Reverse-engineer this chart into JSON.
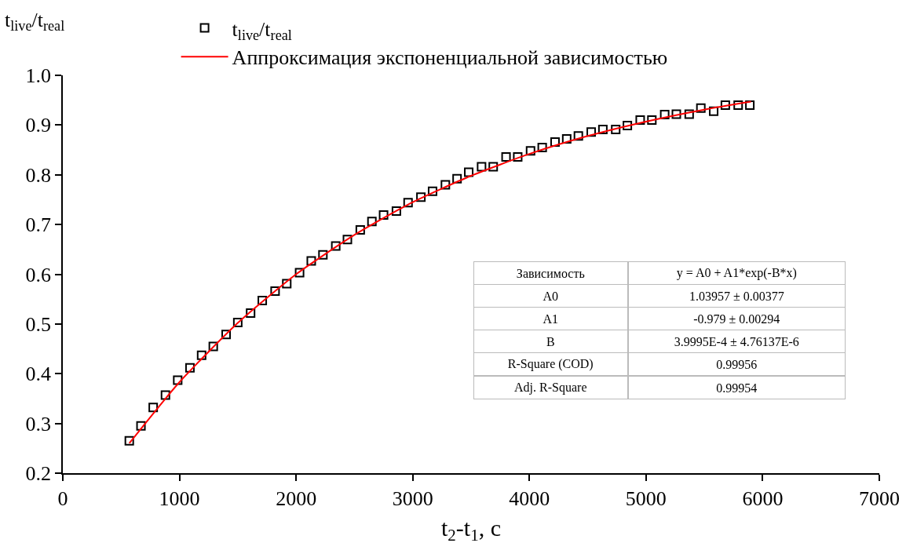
{
  "chart_data": {
    "type": "scatter",
    "xlabel": "t$_{2}$-t$_{1}$, c",
    "ylabel": "t$_{live}$/t$_{real}$",
    "xlim": [
      0,
      7000
    ],
    "xticks": [
      0,
      1000,
      2000,
      3000,
      4000,
      5000,
      6000,
      7000
    ],
    "ylim": [
      0.2,
      1.0
    ],
    "yticks": [
      {
        "value": 0.2,
        "label": "0.2"
      },
      {
        "value": 0.3,
        "label": "0.3"
      },
      {
        "value": 0.4,
        "label": "0.4"
      },
      {
        "value": 0.5,
        "label": "0.5"
      },
      {
        "value": 0.6,
        "label": "0.6"
      },
      {
        "value": 0.7,
        "label": "0.7"
      },
      {
        "value": 0.8,
        "label": "0.8"
      },
      {
        "value": 0.9,
        "label": "0.9"
      },
      {
        "value": 1.0,
        "label": "1.0"
      }
    ],
    "grid": false,
    "legend": "top",
    "marker": "square",
    "series": [
      {
        "name": "t$_{live}$/t$_{real}$",
        "type": "scatter",
        "color": "#000000",
        "x": [
          570,
          670,
          775,
          880,
          985,
          1090,
          1190,
          1290,
          1400,
          1500,
          1610,
          1710,
          1820,
          1920,
          2030,
          2130,
          2230,
          2340,
          2440,
          2550,
          2650,
          2750,
          2860,
          2960,
          3070,
          3170,
          3280,
          3380,
          3480,
          3590,
          3690,
          3800,
          3900,
          4010,
          4110,
          4220,
          4320,
          4420,
          4530,
          4630,
          4740,
          4840,
          4950,
          5050,
          5160,
          5260,
          5370,
          5470,
          5580,
          5680,
          5790,
          5890
        ],
        "values": [
          0.265,
          0.295,
          0.332,
          0.357,
          0.387,
          0.412,
          0.437,
          0.455,
          0.479,
          0.503,
          0.522,
          0.547,
          0.566,
          0.581,
          0.603,
          0.627,
          0.639,
          0.657,
          0.67,
          0.689,
          0.706,
          0.719,
          0.727,
          0.744,
          0.755,
          0.767,
          0.78,
          0.792,
          0.805,
          0.816,
          0.816,
          0.836,
          0.836,
          0.848,
          0.855,
          0.866,
          0.872,
          0.878,
          0.886,
          0.891,
          0.891,
          0.899,
          0.91,
          0.91,
          0.921,
          0.922,
          0.922,
          0.934,
          0.928,
          0.94,
          0.94,
          0.94
        ]
      },
      {
        "name": "Аппроксимация экспоненциальной зависимостью",
        "type": "line",
        "color": "#ff0000",
        "line_style": "solid",
        "marker": "none",
        "x": [
          570,
          1000,
          1500,
          2000,
          2500,
          3000,
          3500,
          4000,
          4500,
          5000,
          5500,
          5900
        ],
        "values": [
          0.26,
          0.383,
          0.502,
          0.6,
          0.679,
          0.745,
          0.798,
          0.842,
          0.878,
          0.907,
          0.931,
          0.947
        ]
      }
    ],
    "annotations": [
      "Зависимость",
      "y = A0 + A1*exp(-B*x)",
      "A0",
      "1.03957 ± 0.00377",
      "A1",
      "-0.979 ± 0.00294",
      "B",
      "3.9995E-4 ± 4.76137E-6",
      "R-Square (COD)",
      "0.99956",
      "Adj. R-Square",
      "0.99954"
    ]
  }
}
